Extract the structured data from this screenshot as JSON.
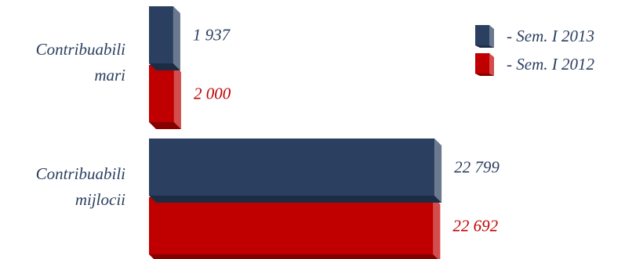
{
  "chart_data": {
    "type": "bar",
    "orientation": "horizontal",
    "three_d": true,
    "title": "",
    "xlabel": "",
    "ylabel": "",
    "categories": [
      "Contribuabili mari",
      "Contribuabili mijlocii"
    ],
    "category_lines": [
      [
        "Contribuabili",
        "mari"
      ],
      [
        "Contribuabili",
        "mijlocii"
      ]
    ],
    "series": [
      {
        "name": "- Sem. I 2013",
        "values": [
          1937,
          22799
        ],
        "value_labels": [
          "1 937",
          "22 799"
        ],
        "color": "#2b3f60",
        "label_color": "#2b3f60"
      },
      {
        "name": "- Sem. I 2012",
        "values": [
          2000,
          22692
        ],
        "value_labels": [
          "2 000",
          "22 692"
        ],
        "color": "#c00000",
        "label_color": "#c00000"
      }
    ],
    "value_axis_visible": false,
    "grid": false,
    "legend_position": "top-right"
  }
}
